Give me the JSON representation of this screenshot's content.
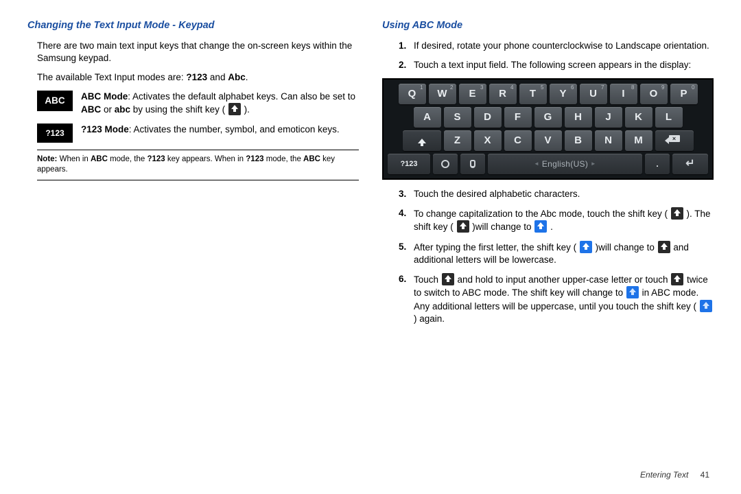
{
  "left": {
    "title": "Changing the Text Input Mode - Keypad",
    "p1": "There are two main text input keys that change the on-screen keys within the Samsung keypad.",
    "p2_a": "The available Text Input modes are: ",
    "p2_b": "?123",
    "p2_c": " and ",
    "p2_d": "Abc",
    "p2_e": ".",
    "abc_badge": "ABC",
    "abc_desc_a": "ABC Mode",
    "abc_desc_b": ": Activates the default alphabet keys. Can also be set to ",
    "abc_desc_c": "ABC",
    "abc_desc_d": " or ",
    "abc_desc_e": "abc",
    "abc_desc_f": " by using the shift key ( ",
    "abc_desc_g": " ).",
    "n123_badge": "?123",
    "n123_desc_a": "?123 Mode",
    "n123_desc_b": ": Activates the number, symbol, and emoticon keys.",
    "note_a": "Note:",
    "note_b": " When in ",
    "note_c": "ABC",
    "note_d": " mode, the ",
    "note_e": "?123",
    "note_f": " key appears. When in ",
    "note_g": "?123",
    "note_h": " mode, the ",
    "note_i": "ABC",
    "note_j": " key appears."
  },
  "right": {
    "title": "Using ABC Mode",
    "s1": "If desired, rotate your phone counterclockwise to Landscape orientation.",
    "s2": "Touch a text input field. The following screen appears in the display:",
    "s3": "Touch the desired alphabetic characters.",
    "s4_a": "To change capitalization to the Abc mode, touch the shift key ( ",
    "s4_b": " ). The shift key ( ",
    "s4_c": " )will change to ",
    "s4_d": " .",
    "s5_a": "After typing the first letter, the shift key ( ",
    "s5_b": " )will change to ",
    "s5_c": " and additional letters will be lowercase.",
    "s6_a": "Touch ",
    "s6_b": " and hold to input another upper-case letter or touch ",
    "s6_c": " twice to switch to ABC mode. The shift key will change to ",
    "s6_d": " in ABC mode. Any additional letters will be uppercase, until you touch the shift key ( ",
    "s6_e": " ) again.",
    "num": {
      "n1": "1.",
      "n2": "2.",
      "n3": "3.",
      "n4": "4.",
      "n5": "5.",
      "n6": "6."
    }
  },
  "keyboard": {
    "row1": [
      {
        "l": "Q",
        "s": "1"
      },
      {
        "l": "W",
        "s": "2"
      },
      {
        "l": "E",
        "s": "3"
      },
      {
        "l": "R",
        "s": "4"
      },
      {
        "l": "T",
        "s": "5"
      },
      {
        "l": "Y",
        "s": "6"
      },
      {
        "l": "U",
        "s": "7"
      },
      {
        "l": "I",
        "s": "8"
      },
      {
        "l": "O",
        "s": "9"
      },
      {
        "l": "P",
        "s": "0"
      }
    ],
    "row2": [
      "A",
      "S",
      "D",
      "F",
      "G",
      "H",
      "J",
      "K",
      "L"
    ],
    "row3": [
      "Z",
      "X",
      "C",
      "V",
      "B",
      "N",
      "M"
    ],
    "n123": "?123",
    "space": "English(US)",
    "dot": "."
  },
  "footer": {
    "section": "Entering Text",
    "page": "41"
  },
  "colors": {
    "heading": "#1a4ea0",
    "blue_key": "#1e73e8"
  }
}
